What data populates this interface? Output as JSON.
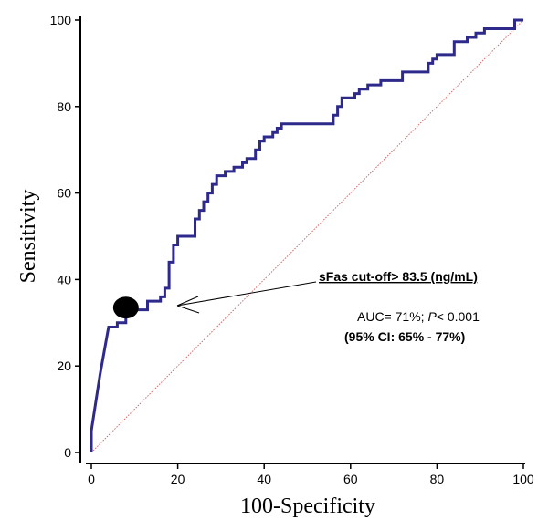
{
  "chart_data": {
    "type": "line",
    "xlabel": "100-Specificity",
    "ylabel": "Sensitivity",
    "xlim": [
      0,
      100
    ],
    "ylim": [
      0,
      100
    ],
    "x_ticks": [
      0,
      20,
      40,
      60,
      80,
      100
    ],
    "y_ticks": [
      0,
      20,
      40,
      60,
      80,
      100
    ],
    "grid": false,
    "series": [
      {
        "color": "#2e2a8c",
        "x": [
          0,
          0,
          2,
          2,
          4,
          4,
          6,
          6,
          8,
          8,
          11,
          11,
          13,
          13,
          16,
          16,
          17,
          17,
          18,
          18,
          19,
          19,
          20,
          20,
          24,
          24,
          25,
          25,
          26,
          26,
          27,
          27,
          28,
          28,
          29,
          29,
          31,
          31,
          33,
          33,
          35,
          35,
          36,
          36,
          38,
          38,
          39,
          39,
          40,
          40,
          42,
          42,
          43,
          43,
          44,
          44,
          56,
          56,
          57,
          57,
          58,
          58,
          61,
          61,
          62,
          62,
          64,
          64,
          67,
          67,
          72,
          72,
          78,
          78,
          79,
          79,
          80,
          80,
          84,
          84,
          87,
          87,
          89,
          89,
          91,
          91,
          98,
          98,
          100
        ],
        "y": [
          0,
          5,
          18,
          18,
          29,
          29,
          29,
          30,
          30,
          33,
          33,
          33,
          33,
          35,
          35,
          36,
          36,
          38,
          38,
          44,
          44,
          48,
          48,
          50,
          50,
          54,
          54,
          56,
          56,
          58,
          58,
          60,
          60,
          62,
          62,
          64,
          64,
          65,
          65,
          66,
          66,
          67,
          67,
          68,
          68,
          70,
          70,
          72,
          72,
          73,
          73,
          74,
          74,
          75,
          75,
          76,
          76,
          78,
          78,
          80,
          80,
          82,
          82,
          83,
          83,
          84,
          84,
          85,
          85,
          86,
          86,
          88,
          88,
          90,
          90,
          91,
          91,
          92,
          92,
          95,
          95,
          96,
          96,
          97,
          97,
          98,
          98,
          100,
          100
        ]
      }
    ],
    "reference_line": {
      "x": [
        0,
        100
      ],
      "y": [
        0,
        100
      ],
      "color": "#d06a6a"
    },
    "marker": {
      "x": 8,
      "y": 33.5,
      "color": "#000000"
    },
    "annotations": {
      "cutoff": "sFas cut-off> 83.5 (ng/mL)",
      "auc_prefix": "AUC= 71%; ",
      "auc_p": "P",
      "auc_suffix": "< 0.001",
      "ci": "(95% CI: 65% - 77%)"
    }
  }
}
